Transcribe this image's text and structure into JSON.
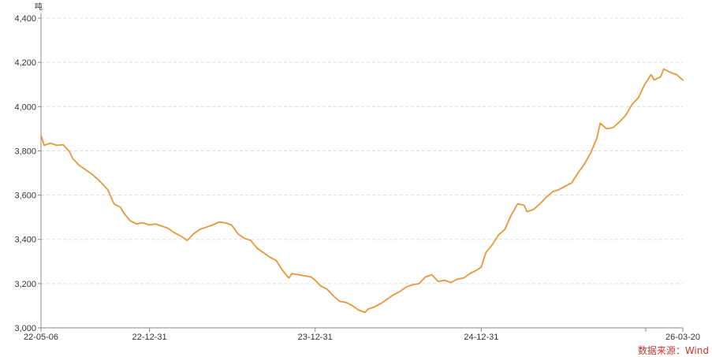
{
  "chart_data": {
    "type": "line",
    "unit": "吨",
    "source": "数据来源：Wind",
    "line_color": "#e8963a",
    "ylim": [
      3000,
      4400
    ],
    "y_ticks": [
      3000,
      3200,
      3400,
      3600,
      3800,
      4000,
      4200,
      4400
    ],
    "y_tick_labels": [
      "3,000",
      "3,200",
      "3,400",
      "3,600",
      "3,800",
      "4,000",
      "4,200",
      "4,400"
    ],
    "x_range": [
      "2022-05-06",
      "2026-03-20"
    ],
    "x_ticks": [
      "2022-05-06",
      "2022-12-31",
      "2023-12-31",
      "2024-12-31",
      "2026-03-20"
    ],
    "x_tick_labels": [
      "22-05-06",
      "22-12-31",
      "23-12-31",
      "24-12-31",
      "26-03-20"
    ],
    "grid": {
      "horizontal": true,
      "style": "dashed"
    },
    "series": [
      {
        "color": "#e8963a",
        "points": [
          [
            "2022-05-06",
            3870
          ],
          [
            "2022-05-13",
            3825
          ],
          [
            "2022-05-27",
            3835
          ],
          [
            "2022-06-10",
            3825
          ],
          [
            "2022-06-24",
            3828
          ],
          [
            "2022-07-08",
            3795
          ],
          [
            "2022-07-15",
            3765
          ],
          [
            "2022-07-29",
            3735
          ],
          [
            "2022-08-12",
            3715
          ],
          [
            "2022-08-26",
            3695
          ],
          [
            "2022-09-09",
            3670
          ],
          [
            "2022-09-23",
            3640
          ],
          [
            "2022-09-30",
            3625
          ],
          [
            "2022-10-14",
            3560
          ],
          [
            "2022-10-28",
            3545
          ],
          [
            "2022-11-04",
            3520
          ],
          [
            "2022-11-18",
            3485
          ],
          [
            "2022-12-02",
            3470
          ],
          [
            "2022-12-16",
            3475
          ],
          [
            "2022-12-31",
            3465
          ],
          [
            "2023-01-13",
            3470
          ],
          [
            "2023-01-27",
            3460
          ],
          [
            "2023-02-10",
            3450
          ],
          [
            "2023-02-24",
            3430
          ],
          [
            "2023-03-10",
            3415
          ],
          [
            "2023-03-24",
            3395
          ],
          [
            "2023-04-07",
            3425
          ],
          [
            "2023-04-21",
            3445
          ],
          [
            "2023-05-05",
            3455
          ],
          [
            "2023-05-19",
            3465
          ],
          [
            "2023-06-02",
            3478
          ],
          [
            "2023-06-16",
            3475
          ],
          [
            "2023-06-30",
            3465
          ],
          [
            "2023-07-14",
            3425
          ],
          [
            "2023-07-28",
            3405
          ],
          [
            "2023-08-11",
            3395
          ],
          [
            "2023-08-25",
            3360
          ],
          [
            "2023-09-08",
            3340
          ],
          [
            "2023-09-22",
            3320
          ],
          [
            "2023-10-06",
            3305
          ],
          [
            "2023-10-20",
            3260
          ],
          [
            "2023-11-03",
            3225
          ],
          [
            "2023-11-10",
            3245
          ],
          [
            "2023-11-24",
            3240
          ],
          [
            "2023-12-08",
            3235
          ],
          [
            "2023-12-22",
            3230
          ],
          [
            "2023-12-31",
            3215
          ],
          [
            "2024-01-12",
            3190
          ],
          [
            "2024-01-26",
            3175
          ],
          [
            "2024-02-09",
            3145
          ],
          [
            "2024-02-23",
            3120
          ],
          [
            "2024-03-08",
            3115
          ],
          [
            "2024-03-22",
            3100
          ],
          [
            "2024-04-05",
            3080
          ],
          [
            "2024-04-19",
            3070
          ],
          [
            "2024-04-26",
            3085
          ],
          [
            "2024-05-10",
            3095
          ],
          [
            "2024-05-24",
            3110
          ],
          [
            "2024-06-07",
            3130
          ],
          [
            "2024-06-21",
            3150
          ],
          [
            "2024-07-05",
            3165
          ],
          [
            "2024-07-19",
            3185
          ],
          [
            "2024-08-02",
            3195
          ],
          [
            "2024-08-16",
            3200
          ],
          [
            "2024-08-30",
            3230
          ],
          [
            "2024-09-13",
            3240
          ],
          [
            "2024-09-27",
            3210
          ],
          [
            "2024-10-11",
            3215
          ],
          [
            "2024-10-25",
            3205
          ],
          [
            "2024-11-08",
            3220
          ],
          [
            "2024-11-22",
            3225
          ],
          [
            "2024-12-06",
            3245
          ],
          [
            "2024-12-20",
            3260
          ],
          [
            "2024-12-31",
            3275
          ],
          [
            "2025-01-10",
            3340
          ],
          [
            "2025-01-24",
            3375
          ],
          [
            "2025-02-07",
            3420
          ],
          [
            "2025-02-21",
            3445
          ],
          [
            "2025-03-07",
            3510
          ],
          [
            "2025-03-21",
            3560
          ],
          [
            "2025-04-04",
            3555
          ],
          [
            "2025-04-11",
            3525
          ],
          [
            "2025-04-25",
            3535
          ],
          [
            "2025-05-09",
            3560
          ],
          [
            "2025-05-23",
            3590
          ],
          [
            "2025-06-06",
            3615
          ],
          [
            "2025-06-20",
            3625
          ],
          [
            "2025-07-04",
            3640
          ],
          [
            "2025-07-18",
            3655
          ],
          [
            "2025-08-01",
            3700
          ],
          [
            "2025-08-15",
            3740
          ],
          [
            "2025-08-29",
            3790
          ],
          [
            "2025-09-12",
            3860
          ],
          [
            "2025-09-19",
            3925
          ],
          [
            "2025-10-03",
            3900
          ],
          [
            "2025-10-17",
            3905
          ],
          [
            "2025-10-31",
            3930
          ],
          [
            "2025-11-14",
            3960
          ],
          [
            "2025-11-28",
            4010
          ],
          [
            "2025-12-12",
            4040
          ],
          [
            "2025-12-26",
            4100
          ],
          [
            "2026-01-09",
            4145
          ],
          [
            "2026-01-16",
            4120
          ],
          [
            "2026-01-30",
            4135
          ],
          [
            "2026-02-06",
            4170
          ],
          [
            "2026-02-20",
            4155
          ],
          [
            "2026-03-06",
            4145
          ],
          [
            "2026-03-20",
            4120
          ]
        ]
      }
    ]
  }
}
